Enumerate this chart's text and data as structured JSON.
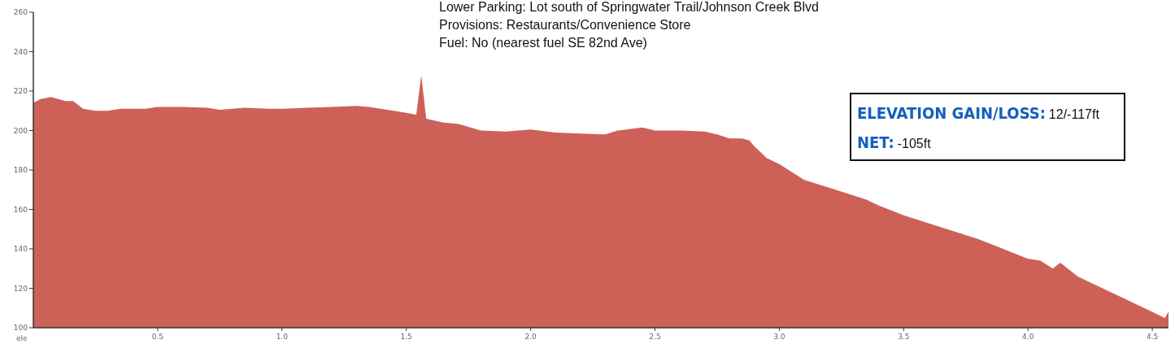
{
  "chart_data": {
    "type": "area",
    "ylabel": "ele",
    "x": [
      0,
      0.03,
      0.07,
      0.1,
      0.13,
      0.16,
      0.2,
      0.25,
      0.3,
      0.35,
      0.4,
      0.45,
      0.5,
      0.6,
      0.7,
      0.75,
      0.85,
      0.95,
      1.0,
      1.1,
      1.2,
      1.3,
      1.35,
      1.45,
      1.5,
      1.54,
      1.56,
      1.58,
      1.65,
      1.7,
      1.72,
      1.8,
      1.9,
      2.0,
      2.1,
      2.2,
      2.3,
      2.35,
      2.45,
      2.5,
      2.6,
      2.7,
      2.75,
      2.8,
      2.85,
      2.88,
      2.9,
      2.95,
      3.0,
      3.05,
      3.1,
      3.2,
      3.3,
      3.35,
      3.4,
      3.5,
      3.6,
      3.7,
      3.8,
      3.9,
      4.0,
      4.05,
      4.1,
      4.13,
      4.2,
      4.3,
      4.4,
      4.5,
      4.55,
      4.565
    ],
    "values": [
      214,
      216,
      217,
      216,
      215,
      215,
      211,
      210,
      210,
      211,
      211,
      211,
      212,
      212,
      211.5,
      210.5,
      211.5,
      211,
      211,
      211.5,
      212,
      212.5,
      212,
      210,
      209,
      208,
      228,
      206,
      204,
      203.5,
      203,
      200,
      199.5,
      200.5,
      199,
      198.5,
      198,
      200,
      201.5,
      200,
      200,
      199.5,
      198,
      196,
      196,
      195,
      192,
      186,
      183,
      179,
      175,
      171,
      167,
      165,
      162,
      157,
      153,
      149,
      145,
      140,
      135,
      134,
      130,
      133,
      126,
      120,
      114,
      108,
      105,
      108
    ],
    "color": "#cd6158",
    "xlim": [
      0,
      4.565
    ],
    "xticks": [
      0.5,
      {
        "value": 1,
        "label": "1.0"
      },
      1.5,
      {
        "value": 2,
        "label": "2.0"
      },
      2.5,
      {
        "value": 3,
        "label": "3.0"
      },
      3.5,
      {
        "value": 4,
        "label": "4.0"
      },
      4.5
    ],
    "ylim": [
      100,
      260
    ],
    "yticks": [
      100,
      120,
      140,
      160,
      180,
      200,
      220,
      240,
      260
    ],
    "grid": false,
    "annotations": [
      "Lower Parking: Lot south of Springwater Trail/Johnson Creek Blvd",
      "Provisions: Restaurants/Convenience Store",
      "Fuel: No (nearest fuel SE 82nd Ave)",
      "ELEVATION GAIN/LOSS: 12/-117ft",
      "NET: -105ft"
    ]
  }
}
